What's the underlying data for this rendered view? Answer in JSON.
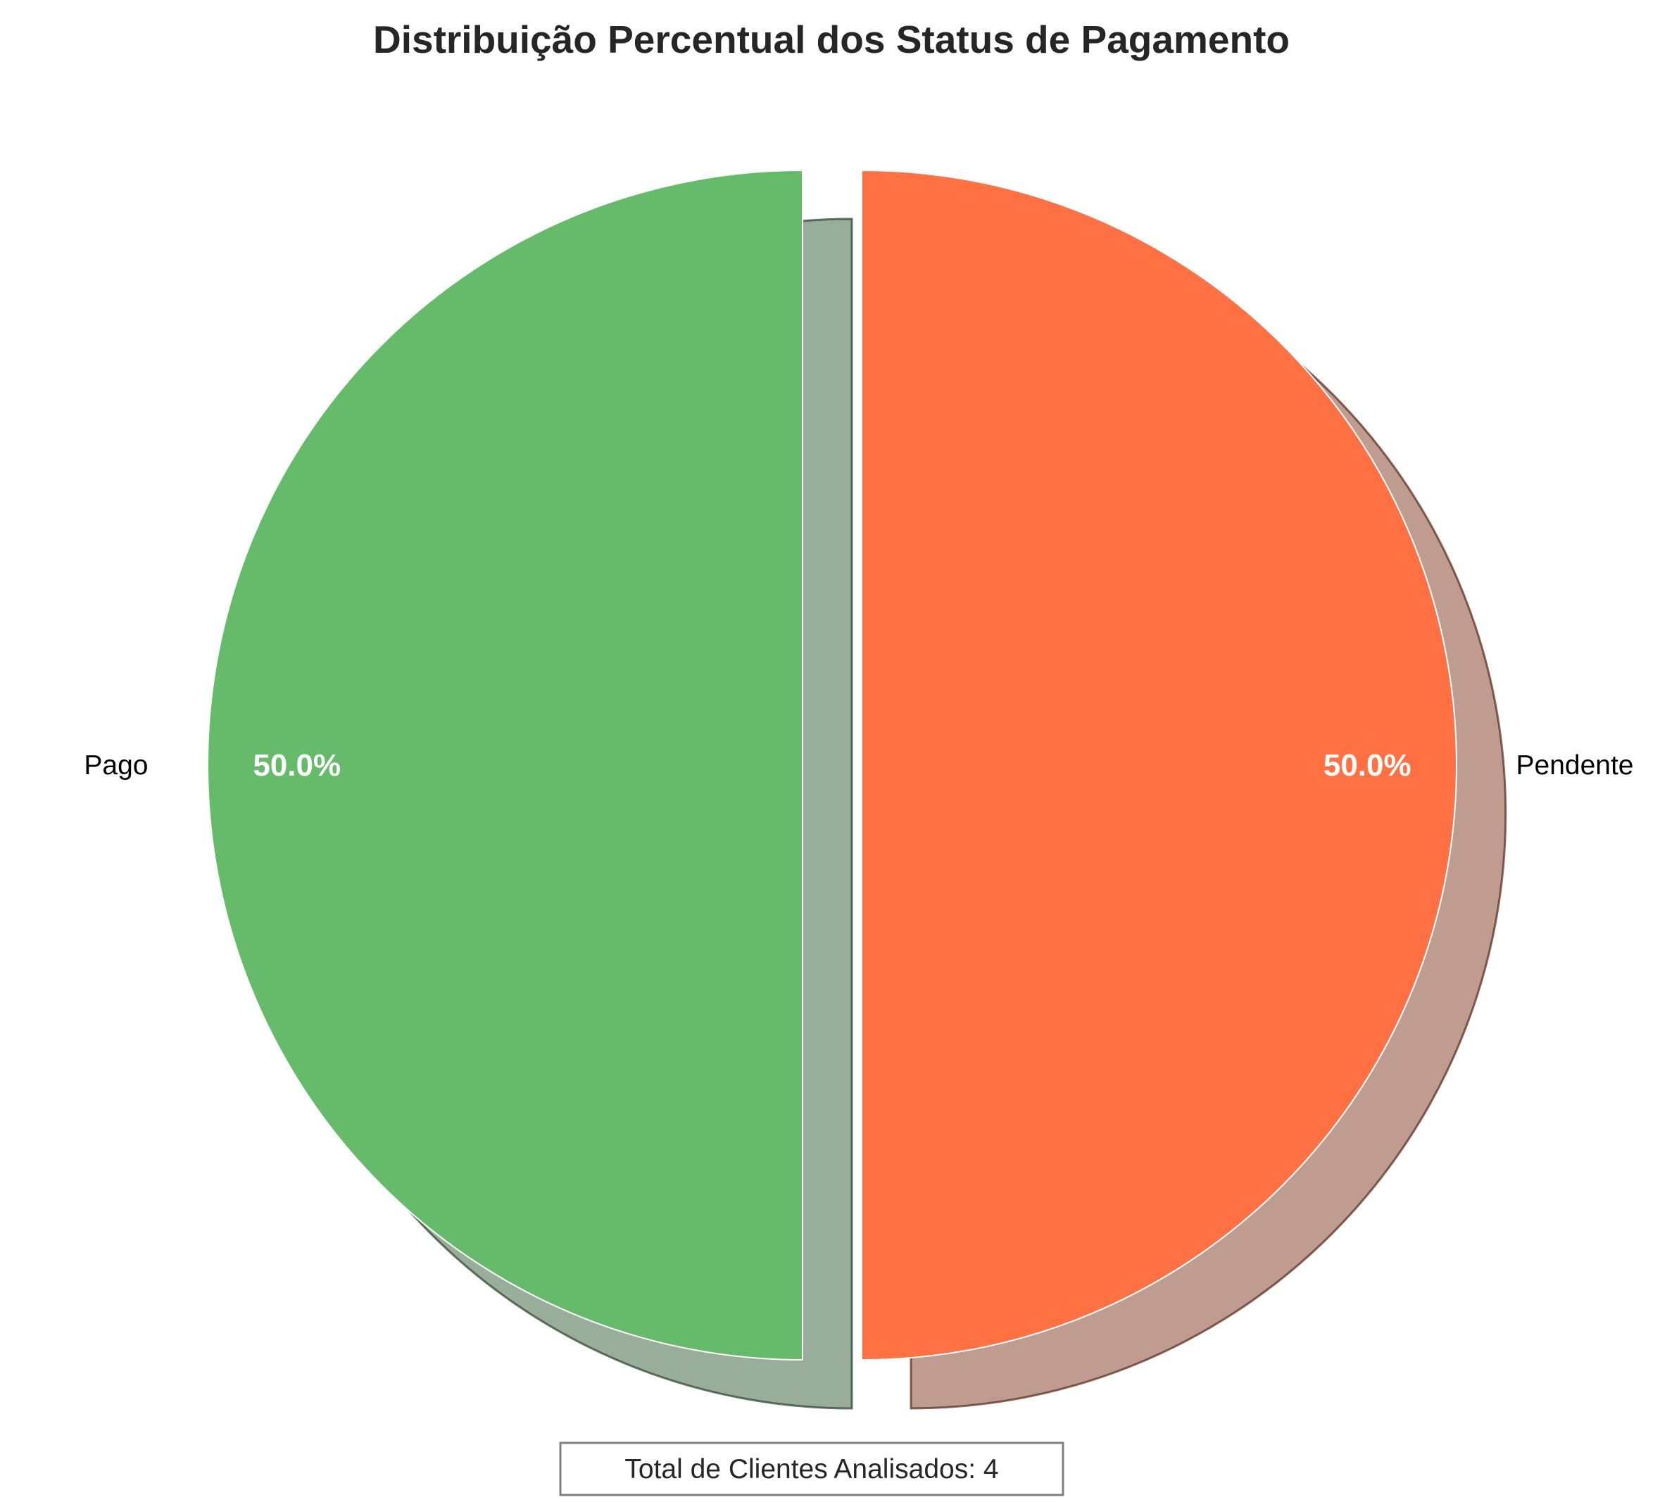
{
  "chart_data": {
    "type": "pie",
    "title": "Distribuição Percentual dos Status de Pagamento",
    "categories": [
      "Pago",
      "Pendente"
    ],
    "values": [
      50.0,
      50.0
    ],
    "value_labels": [
      "50.0%",
      "50.0%"
    ],
    "colors": [
      "#66BB6A",
      "#FF7043"
    ],
    "shadow": true,
    "exploded": true,
    "legend": "none",
    "annotation": "Total de Clientes Analisados: 4"
  }
}
